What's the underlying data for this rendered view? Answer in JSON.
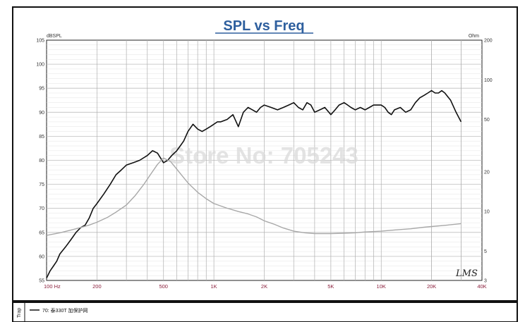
{
  "chart_data": {
    "type": "line",
    "title": "SPL vs Freq",
    "y_left_unit": "dBSPL",
    "y_right_unit": "Ohm",
    "x_scale": "log",
    "xlim": [
      100,
      40000
    ],
    "ylim": [
      55,
      105
    ],
    "y_right_scale": "log",
    "y_right_lim": [
      3,
      200
    ],
    "grid": true,
    "x_tick_labels": [
      {
        "value": 100,
        "label": "100 Hz"
      },
      {
        "value": 200,
        "label": "200"
      },
      {
        "value": 500,
        "label": "500"
      },
      {
        "value": 1000,
        "label": "1K"
      },
      {
        "value": 2000,
        "label": "2K"
      },
      {
        "value": 5000,
        "label": "5K"
      },
      {
        "value": 10000,
        "label": "10K"
      },
      {
        "value": 20000,
        "label": "20K"
      },
      {
        "value": 40000,
        "label": "40K"
      }
    ],
    "y_left_ticks": [
      55,
      60,
      65,
      70,
      75,
      80,
      85,
      90,
      95,
      100,
      105
    ],
    "y_right_ticks": [
      {
        "value": 3,
        "label": "3"
      },
      {
        "value": 5,
        "label": "5"
      },
      {
        "value": 10,
        "label": "10"
      },
      {
        "value": 20,
        "label": "20"
      },
      {
        "value": 50,
        "label": "50"
      },
      {
        "value": 100,
        "label": "100"
      },
      {
        "value": 200,
        "label": "200"
      }
    ],
    "watermark": "Store No: 705243",
    "logo_text": "LMS",
    "series": [
      {
        "name": "70: 泰330T 加保护网",
        "axis": "left",
        "color": "#111111",
        "x": [
          100,
          105,
          110,
          115,
          120,
          130,
          140,
          150,
          160,
          170,
          180,
          190,
          200,
          220,
          240,
          260,
          280,
          300,
          330,
          360,
          400,
          430,
          460,
          500,
          530,
          560,
          600,
          630,
          660,
          700,
          750,
          800,
          850,
          900,
          950,
          1000,
          1050,
          1100,
          1200,
          1300,
          1400,
          1500,
          1600,
          1700,
          1800,
          1900,
          2000,
          2200,
          2400,
          2600,
          2800,
          3000,
          3200,
          3400,
          3600,
          3800,
          4000,
          4300,
          4600,
          5000,
          5300,
          5600,
          6000,
          6300,
          6600,
          7000,
          7500,
          8000,
          8500,
          9000,
          9500,
          10000,
          10500,
          11000,
          11500,
          12000,
          13000,
          14000,
          15000,
          16000,
          17000,
          18000,
          19000,
          20000,
          21000,
          22000,
          23000,
          24000,
          26000,
          28000,
          30000
        ],
        "y": [
          55.5,
          57,
          58,
          59,
          60.5,
          62,
          63.5,
          65,
          66,
          66.5,
          68,
          70,
          71,
          73,
          75,
          77,
          78,
          79,
          79.5,
          80,
          81,
          82,
          81.5,
          79.5,
          80,
          81,
          82,
          83,
          84,
          86,
          87.5,
          86.5,
          86,
          86.5,
          87,
          87.5,
          88,
          88,
          88.5,
          89.5,
          87,
          90,
          91,
          90.5,
          90,
          91,
          91.5,
          91,
          90.5,
          91,
          91.5,
          92,
          91,
          90.5,
          92,
          91.5,
          90,
          90.5,
          91,
          89.5,
          90.5,
          91.5,
          92,
          91.5,
          91,
          90.5,
          91,
          90.5,
          91,
          91.5,
          91.5,
          91.5,
          91,
          90,
          89.5,
          90.5,
          91,
          90,
          90.5,
          92,
          93,
          93.5,
          94,
          94.5,
          94,
          94,
          94.5,
          94,
          92.5,
          90,
          88
        ]
      },
      {
        "name": "",
        "axis": "right",
        "color": "#a8a8a8",
        "x": [
          100,
          120,
          150,
          180,
          200,
          230,
          260,
          300,
          340,
          380,
          420,
          460,
          500,
          550,
          600,
          650,
          700,
          800,
          900,
          1000,
          1200,
          1400,
          1600,
          1800,
          2000,
          2300,
          2600,
          3000,
          3500,
          4000,
          5000,
          6000,
          7000,
          8000,
          10000,
          12000,
          15000,
          18000,
          20000,
          25000,
          30000
        ],
        "y": [
          6.6,
          6.9,
          7.4,
          7.9,
          8.3,
          9.0,
          9.9,
          11.2,
          13.3,
          16.0,
          19.3,
          22.8,
          25.5,
          24.0,
          21.0,
          18.5,
          16.5,
          14.0,
          12.5,
          11.5,
          10.6,
          10.0,
          9.6,
          9.1,
          8.5,
          8.0,
          7.5,
          7.1,
          6.9,
          6.8,
          6.8,
          6.85,
          6.9,
          7.0,
          7.1,
          7.25,
          7.4,
          7.6,
          7.7,
          7.9,
          8.1
        ]
      }
    ]
  },
  "legend": {
    "side_label": "Trap",
    "entry_label": "70: 泰330T 加保护网"
  }
}
